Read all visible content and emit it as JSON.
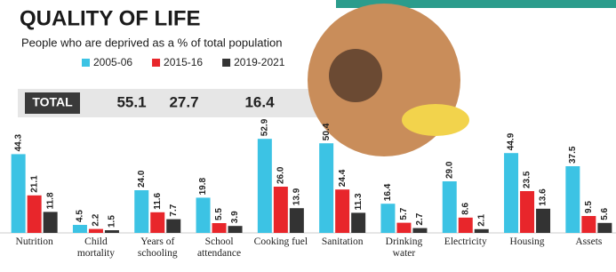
{
  "chart_data": {
    "type": "bar",
    "title": "QUALITY OF LIFE",
    "subtitle": "People who are deprived as a % of total population",
    "total_label": "TOTAL",
    "total_values": [
      55.1,
      27.7,
      16.4
    ],
    "categories": [
      "Nutrition",
      "Child mortality",
      "Years of schooling",
      "School attendance",
      "Cooking fuel",
      "Sanitation",
      "Drinking water",
      "Electricity",
      "Housing",
      "Assets"
    ],
    "series": [
      {
        "name": "2005-06",
        "color": "#3cc3e4",
        "values": [
          44.3,
          4.5,
          24.0,
          19.8,
          52.9,
          50.4,
          16.4,
          29.0,
          44.9,
          37.5
        ],
        "value_labels": [
          "44.3",
          "4.5",
          "24.0",
          "19.8",
          "52.9",
          "50.4",
          "16.4",
          "29.0",
          "44.9",
          "37.5"
        ]
      },
      {
        "name": "2015-16",
        "color": "#e8262b",
        "values": [
          21.1,
          2.2,
          11.6,
          5.5,
          26.0,
          24.4,
          5.7,
          8.6,
          23.5,
          9.5
        ],
        "value_labels": [
          "21.1",
          "2.2",
          "11.6",
          "5.5",
          "26.0",
          "24.4",
          "5.7",
          "8.6",
          "23.5",
          "9.5"
        ]
      },
      {
        "name": "2019-2021",
        "color": "#333333",
        "values": [
          11.8,
          1.5,
          7.7,
          3.9,
          13.9,
          11.3,
          2.7,
          2.1,
          13.6,
          5.6
        ],
        "value_labels": [
          "11.8",
          "1.5",
          "7.7",
          "3.9",
          "13.9",
          "11.3",
          "2.7",
          "2.1",
          "13.6",
          "5.6"
        ]
      }
    ]
  }
}
